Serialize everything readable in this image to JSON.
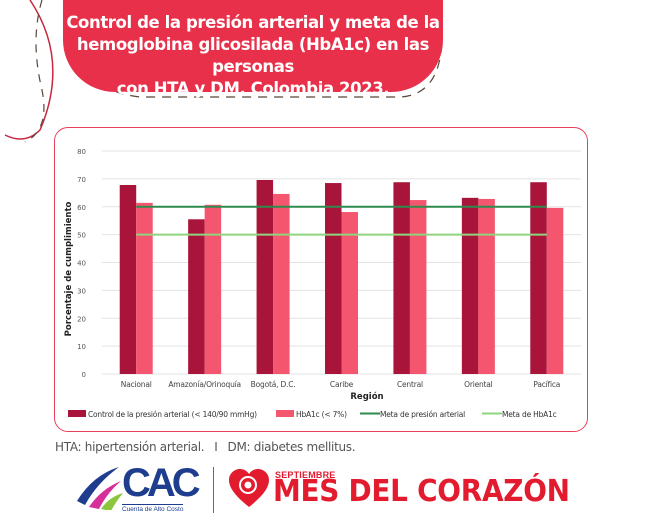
{
  "title": {
    "line1": "Control de la presión arterial y meta de la",
    "line2": "hemoglobina glicosilada (HbA1c) en las personas",
    "line3": "con HTA y DM, Colombia 2023."
  },
  "colors": {
    "banner": "#E8304A",
    "bp_bar": "#A8143A",
    "hba1c_bar": "#F5566F",
    "bp_target": "#2E8B4E",
    "hba1c_target": "#8FD47E"
  },
  "chart_data": {
    "type": "bar",
    "title": "Control de la presión arterial y meta de la hemoglobina glicosilada (HbA1c) en las personas con HTA y DM, Colombia 2023.",
    "xlabel": "Región",
    "ylabel": "Porcentaje de cumplimiento",
    "ylim": [
      0,
      80
    ],
    "yticks": [
      0,
      10,
      20,
      30,
      40,
      50,
      60,
      70,
      80
    ],
    "grid": true,
    "legend_position": "bottom",
    "categories": [
      "Nacional",
      "Amazonía/Orinoquía",
      "Bogotá, D.C.",
      "Caribe",
      "Central",
      "Oriental",
      "Pacífica"
    ],
    "series": [
      {
        "name": "Control de la presión arterial (< 140/90 mmHg)",
        "type": "bar",
        "values": [
          67.8,
          55.5,
          69.6,
          68.5,
          68.8,
          63.2,
          68.8
        ]
      },
      {
        "name": "HbA1c (< 7%)",
        "type": "bar",
        "values": [
          61.4,
          60.7,
          64.6,
          58.1,
          62.4,
          62.8,
          59.6
        ]
      },
      {
        "name": "Meta de presión arterial",
        "type": "line",
        "values": [
          60,
          60,
          60,
          60,
          60,
          60,
          60
        ]
      },
      {
        "name": "Meta de HbA1c",
        "type": "line",
        "values": [
          50,
          50,
          50,
          50,
          50,
          50,
          50
        ]
      }
    ]
  },
  "footnote": {
    "hta": "HTA: hipertensión arterial.",
    "separator": "I",
    "dm": "DM: diabetes mellitus."
  },
  "logos": {
    "cac": "CAC",
    "cac_sub": "Cuenta de Alto Costo",
    "campaign_small": "SEPTIEMBRE",
    "campaign_big": "MES DEL CORAZÓN"
  }
}
